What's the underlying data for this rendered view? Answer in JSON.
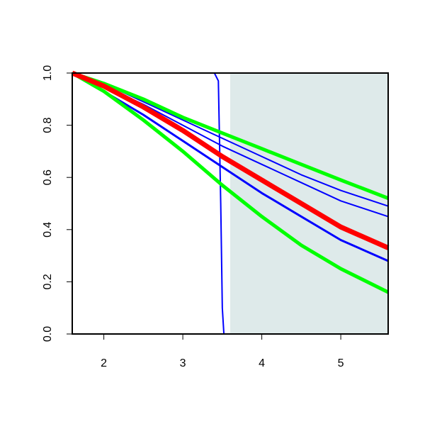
{
  "chart_data": {
    "type": "line",
    "xlim": [
      1.6,
      5.6
    ],
    "ylim": [
      0,
      1
    ],
    "xticks": [
      2,
      3,
      4,
      5
    ],
    "yticks": [
      {
        "value": 0,
        "label": "0.0"
      },
      0.2,
      0.4,
      0.6,
      0.8,
      {
        "value": 1,
        "label": "1.0"
      }
    ],
    "shade": {
      "xlim": [
        3.6,
        5.6
      ],
      "color": "#deeaea"
    },
    "series": [
      {
        "color": "#0000ff",
        "lw": 2,
        "x": [
          1.6,
          3.4,
          3.45,
          3.48,
          3.5,
          3.52,
          5.6
        ],
        "values": [
          1,
          1,
          0.97,
          0.5,
          0.1,
          0,
          0
        ]
      },
      {
        "color": "#0000ff",
        "lw": 2,
        "x": [
          1.6,
          2,
          2.5,
          3,
          3.5,
          4,
          4.5,
          5,
          5.6
        ],
        "values": [
          1,
          0.96,
          0.89,
          0.82,
          0.75,
          0.68,
          0.61,
          0.55,
          0.49
        ]
      },
      {
        "color": "#0000ff",
        "lw": 2,
        "x": [
          1.6,
          2,
          2.5,
          3,
          3.5,
          4,
          4.5,
          5,
          5.6
        ],
        "values": [
          1,
          0.95,
          0.88,
          0.8,
          0.72,
          0.65,
          0.58,
          0.51,
          0.45
        ]
      },
      {
        "color": "#0000ff",
        "lw": 3,
        "x": [
          1.6,
          2,
          2.5,
          3,
          3.5,
          4,
          4.5,
          5,
          5.6
        ],
        "values": [
          1,
          0.93,
          0.84,
          0.74,
          0.64,
          0.54,
          0.45,
          0.36,
          0.28
        ]
      },
      {
        "color": "#00ff00",
        "lw": 5,
        "x": [
          1.6,
          2,
          2.5,
          3,
          3.5,
          4,
          4.5,
          5,
          5.6
        ],
        "values": [
          1,
          0.96,
          0.9,
          0.83,
          0.77,
          0.71,
          0.65,
          0.59,
          0.52
        ]
      },
      {
        "color": "#00ff00",
        "lw": 5,
        "x": [
          1.6,
          2,
          2.5,
          3,
          3.5,
          4,
          4.5,
          5,
          5.6
        ],
        "values": [
          1,
          0.93,
          0.82,
          0.7,
          0.57,
          0.45,
          0.34,
          0.25,
          0.16
        ]
      },
      {
        "color": "#ff0000",
        "lw": 7,
        "x": [
          1.6,
          2,
          2.5,
          3,
          3.5,
          4,
          4.5,
          5,
          5.6
        ],
        "values": [
          1,
          0.95,
          0.87,
          0.78,
          0.68,
          0.59,
          0.5,
          0.41,
          0.33
        ]
      }
    ]
  }
}
